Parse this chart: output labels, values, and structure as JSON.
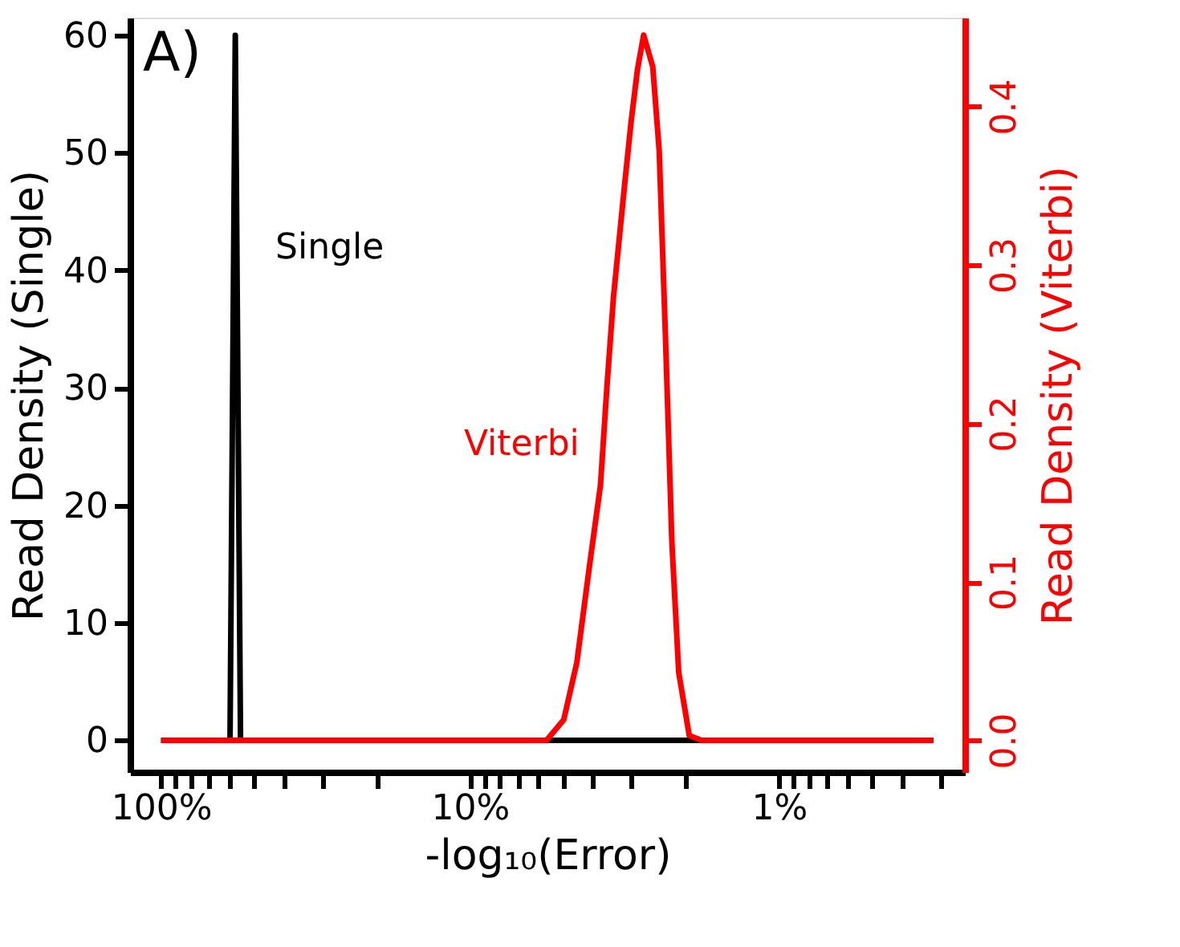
{
  "chart_data": {
    "type": "line",
    "xlabel": "-log₁₀(Error)",
    "ylabel": "Read Density (Single)",
    "y2label": "Read Density (Viterbi)",
    "log": "x",
    "xlim": [
      126,
      0.25
    ],
    "ylim": [
      -2.7,
      61.5
    ],
    "y2lim": [
      -0.02,
      0.456
    ],
    "xticks": [
      {
        "value": 100,
        "label": "100%"
      },
      {
        "value": 90,
        "label": null
      },
      {
        "value": 80,
        "label": null
      },
      {
        "value": 70,
        "label": null
      },
      {
        "value": 60,
        "label": null
      },
      {
        "value": 50,
        "label": null
      },
      {
        "value": 40,
        "label": null
      },
      {
        "value": 30,
        "label": null
      },
      {
        "value": 20,
        "label": null
      },
      {
        "value": 10,
        "label": "10%"
      },
      {
        "value": 9,
        "label": null
      },
      {
        "value": 8,
        "label": null
      },
      {
        "value": 7,
        "label": null
      },
      {
        "value": 6,
        "label": null
      },
      {
        "value": 5,
        "label": null
      },
      {
        "value": 4,
        "label": null
      },
      {
        "value": 3,
        "label": null
      },
      {
        "value": 2,
        "label": null
      },
      {
        "value": 1,
        "label": "1%"
      },
      {
        "value": 0.9,
        "label": null
      },
      {
        "value": 0.8,
        "label": null
      },
      {
        "value": 0.7,
        "label": null
      },
      {
        "value": 0.6,
        "label": null
      },
      {
        "value": 0.5,
        "label": null
      },
      {
        "value": 0.4,
        "label": null
      },
      {
        "value": 0.3,
        "label": null
      }
    ],
    "yticks": [
      0,
      10,
      20,
      30,
      40,
      50,
      60
    ],
    "y2ticks": [
      {
        "value": 0,
        "label": "0.0"
      },
      0.1,
      0.2,
      0.3,
      0.4
    ],
    "series": [
      {
        "name": "Single",
        "color": "#000000",
        "x": [
          100,
          59.8,
          57.5,
          55.3,
          0.316
        ],
        "values": [
          0,
          0,
          60,
          0,
          0
        ]
      },
      {
        "name": "Viterbi",
        "color": "#ff0000",
        "axis": "y2",
        "x": [
          100,
          5.65,
          4.97,
          4.51,
          4.09,
          3.78,
          3.6,
          3.43,
          3.16,
          3.01,
          2.87,
          2.74,
          2.56,
          2.44,
          2.33,
          2.22,
          2.11,
          1.95,
          1.78,
          0.316
        ],
        "values": [
          0,
          0,
          0.013,
          0.049,
          0.112,
          0.161,
          0.224,
          0.28,
          0.35,
          0.39,
          0.423,
          0.445,
          0.425,
          0.372,
          0.256,
          0.125,
          0.043,
          0.003,
          0,
          0
        ]
      }
    ],
    "annotations": [
      "A)"
    ],
    "grid": false,
    "marker": "none",
    "line_style": "solid"
  }
}
